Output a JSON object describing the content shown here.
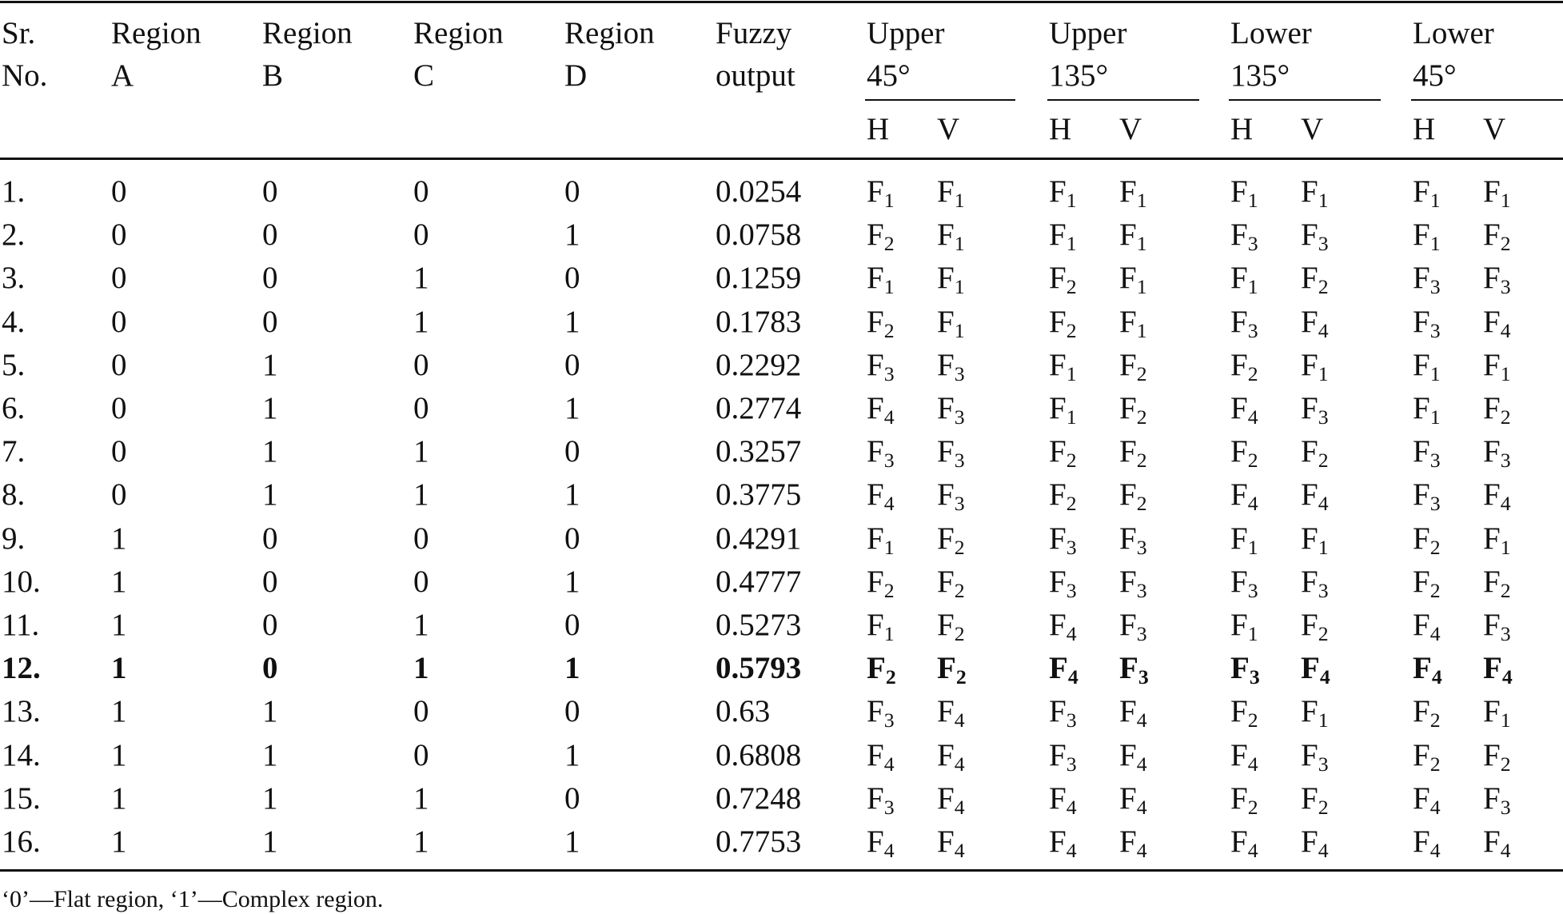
{
  "table": {
    "headers": {
      "sr": [
        "Sr.",
        "No."
      ],
      "regions": [
        [
          "Region",
          "A"
        ],
        [
          "Region",
          "B"
        ],
        [
          "Region",
          "C"
        ],
        [
          "Region",
          "D"
        ]
      ],
      "fuzzy": [
        "Fuzzy",
        "output"
      ],
      "groups": [
        [
          "Upper",
          "45°"
        ],
        [
          "Upper",
          "135°"
        ],
        [
          "Lower",
          "135°"
        ],
        [
          "Lower",
          "45°"
        ]
      ],
      "sub": [
        "H",
        "V"
      ]
    },
    "rows": [
      {
        "sr": "1.",
        "a": "0",
        "b": "0",
        "c": "0",
        "d": "0",
        "fuzzy": "0.0254",
        "f": [
          "1",
          "1",
          "1",
          "1",
          "1",
          "1",
          "1",
          "1"
        ]
      },
      {
        "sr": "2.",
        "a": "0",
        "b": "0",
        "c": "0",
        "d": "1",
        "fuzzy": "0.0758",
        "f": [
          "2",
          "1",
          "1",
          "1",
          "3",
          "3",
          "1",
          "2"
        ]
      },
      {
        "sr": "3.",
        "a": "0",
        "b": "0",
        "c": "1",
        "d": "0",
        "fuzzy": "0.1259",
        "f": [
          "1",
          "1",
          "2",
          "1",
          "1",
          "2",
          "3",
          "3"
        ]
      },
      {
        "sr": "4.",
        "a": "0",
        "b": "0",
        "c": "1",
        "d": "1",
        "fuzzy": "0.1783",
        "f": [
          "2",
          "1",
          "2",
          "1",
          "3",
          "4",
          "3",
          "4"
        ]
      },
      {
        "sr": "5.",
        "a": "0",
        "b": "1",
        "c": "0",
        "d": "0",
        "fuzzy": "0.2292",
        "f": [
          "3",
          "3",
          "1",
          "2",
          "2",
          "1",
          "1",
          "1"
        ]
      },
      {
        "sr": "6.",
        "a": "0",
        "b": "1",
        "c": "0",
        "d": "1",
        "fuzzy": "0.2774",
        "f": [
          "4",
          "3",
          "1",
          "2",
          "4",
          "3",
          "1",
          "2"
        ]
      },
      {
        "sr": "7.",
        "a": "0",
        "b": "1",
        "c": "1",
        "d": "0",
        "fuzzy": "0.3257",
        "f": [
          "3",
          "3",
          "2",
          "2",
          "2",
          "2",
          "3",
          "3"
        ]
      },
      {
        "sr": "8.",
        "a": "0",
        "b": "1",
        "c": "1",
        "d": "1",
        "fuzzy": "0.3775",
        "f": [
          "4",
          "3",
          "2",
          "2",
          "4",
          "4",
          "3",
          "4"
        ]
      },
      {
        "sr": "9.",
        "a": "1",
        "b": "0",
        "c": "0",
        "d": "0",
        "fuzzy": "0.4291",
        "f": [
          "1",
          "2",
          "3",
          "3",
          "1",
          "1",
          "2",
          "1"
        ]
      },
      {
        "sr": "10.",
        "a": "1",
        "b": "0",
        "c": "0",
        "d": "1",
        "fuzzy": "0.4777",
        "f": [
          "2",
          "2",
          "3",
          "3",
          "3",
          "3",
          "2",
          "2"
        ]
      },
      {
        "sr": "11.",
        "a": "1",
        "b": "0",
        "c": "1",
        "d": "0",
        "fuzzy": "0.5273",
        "f": [
          "1",
          "2",
          "4",
          "3",
          "1",
          "2",
          "4",
          "3"
        ]
      },
      {
        "sr": "12.",
        "a": "1",
        "b": "0",
        "c": "1",
        "d": "1",
        "fuzzy": "0.5793",
        "f": [
          "2",
          "2",
          "4",
          "3",
          "3",
          "4",
          "4",
          "4"
        ],
        "bold": true
      },
      {
        "sr": "13.",
        "a": "1",
        "b": "1",
        "c": "0",
        "d": "0",
        "fuzzy": "0.63",
        "f": [
          "3",
          "4",
          "3",
          "4",
          "2",
          "1",
          "2",
          "1"
        ]
      },
      {
        "sr": "14.",
        "a": "1",
        "b": "1",
        "c": "0",
        "d": "1",
        "fuzzy": "0.6808",
        "f": [
          "4",
          "4",
          "3",
          "4",
          "4",
          "3",
          "2",
          "2"
        ]
      },
      {
        "sr": "15.",
        "a": "1",
        "b": "1",
        "c": "1",
        "d": "0",
        "fuzzy": "0.7248",
        "f": [
          "3",
          "4",
          "4",
          "4",
          "2",
          "2",
          "4",
          "3"
        ]
      },
      {
        "sr": "16.",
        "a": "1",
        "b": "1",
        "c": "1",
        "d": "1",
        "fuzzy": "0.7753",
        "f": [
          "4",
          "4",
          "4",
          "4",
          "4",
          "4",
          "4",
          "4"
        ]
      }
    ],
    "f_prefix": "F"
  },
  "footnote": "‘0’—Flat region, ‘1’—Complex region."
}
